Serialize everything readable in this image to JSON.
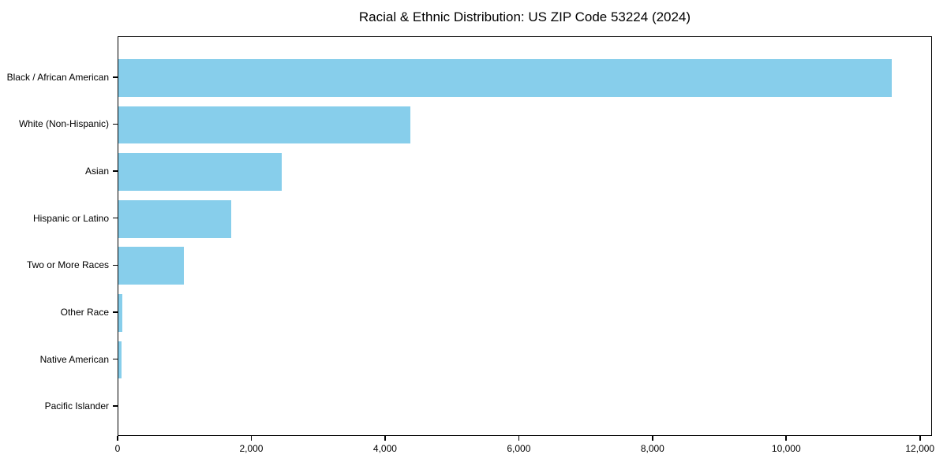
{
  "chart_data": {
    "type": "bar",
    "orientation": "horizontal",
    "title": "Racial & Ethnic Distribution: US ZIP Code 53224 (2024)",
    "categories": [
      "Black / African American",
      "White (Non-Hispanic)",
      "Asian",
      "Hispanic or Latino",
      "Two or More Races",
      "Other Race",
      "Native American",
      "Pacific Islander"
    ],
    "values": [
      11600,
      4380,
      2450,
      1690,
      980,
      60,
      50,
      0
    ],
    "xlabel": "",
    "ylabel": "",
    "xlim": [
      0,
      12180
    ],
    "x_ticks": [
      0,
      2000,
      4000,
      6000,
      8000,
      10000,
      12000
    ],
    "x_tick_labels": [
      "0",
      "2,000",
      "4,000",
      "6,000",
      "8,000",
      "10,000",
      "12,000"
    ],
    "bar_color": "#87CEEB",
    "axis_color": "#000000",
    "text_color": "#000000",
    "background_color": "#FFFFFF",
    "grid": false,
    "legend_position": "none"
  }
}
